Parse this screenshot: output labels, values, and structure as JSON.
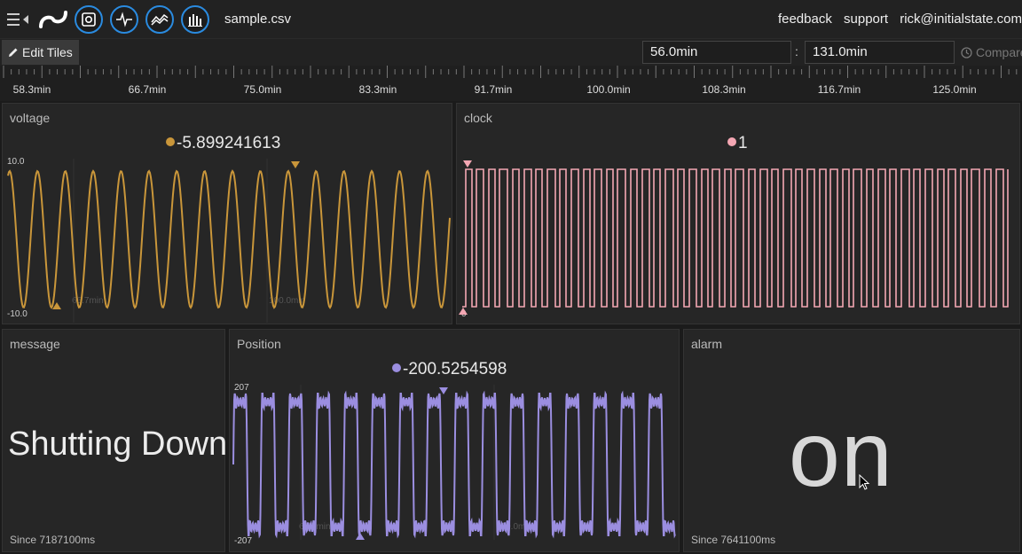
{
  "app": {
    "filename": "sample.csv",
    "links": {
      "feedback": "feedback",
      "support": "support",
      "user": "rick@initialstate.com"
    }
  },
  "toolbar": {
    "edit_label": "Edit Tiles",
    "range_start": "56.0min",
    "range_sep": ":",
    "range_end": "131.0min",
    "compare_label": "Compare"
  },
  "ruler": {
    "labels": [
      "58.3min",
      "66.7min",
      "75.0min",
      "83.3min",
      "91.7min",
      "100.0min",
      "108.3min",
      "116.7min",
      "125.0min"
    ]
  },
  "tiles": {
    "voltage": {
      "title": "voltage",
      "value": "-5.899241613",
      "y_max": "10.0",
      "y_min": "-10.0",
      "inner_label_a": "66.7min",
      "inner_label_b": "100.0min",
      "color": "#c9963a"
    },
    "clock": {
      "title": "clock",
      "value": "1",
      "y_min": "0",
      "color": "#f4a7b3"
    },
    "message": {
      "title": "message",
      "text": "Shutting Down",
      "since": "Since 7187100ms"
    },
    "position": {
      "title": "Position",
      "value": "-200.5254598",
      "y_max": "207",
      "y_min": "-207",
      "inner_label_a": "66.7min",
      "inner_label_b": "100.0min",
      "color": "#9b8ee0"
    },
    "alarm": {
      "title": "alarm",
      "text": "on",
      "since": "Since 7641100ms"
    }
  },
  "icons": {
    "menu": "menu-icon",
    "logo": "initial-state-logo",
    "buttons": [
      "tiles-view-icon",
      "waves-view-icon",
      "lines-view-icon",
      "bars-view-icon"
    ],
    "compare": "clock-icon",
    "edit": "pencil-icon"
  }
}
